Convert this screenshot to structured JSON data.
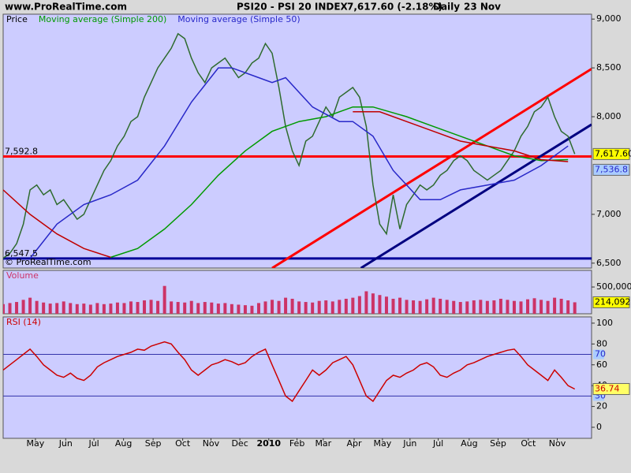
{
  "header": {
    "site": "www.ProRealTime.com",
    "instrument": "PSI20 - PSI 20 INDEX",
    "last": "7,617.60 (-2.18%)",
    "period": "Daily",
    "date": "23 Nov",
    "watermark": "© ProRealTime.com"
  },
  "chart_data": [
    {
      "type": "line",
      "title": "Price",
      "title_color": "#000000",
      "xlim": [
        0,
        87.5
      ],
      "ylim": [
        6450,
        9050
      ],
      "yticks": [
        {
          "value": 6500,
          "label": "6,500"
        },
        {
          "value": 7000,
          "label": "7,000"
        },
        {
          "value": 8000,
          "label": "8,000"
        },
        {
          "value": 8500,
          "label": "8,500"
        },
        {
          "value": 9000,
          "label": "9,000"
        }
      ],
      "series": [
        {
          "color": "#2e6b2e",
          "x": [
            0,
            1,
            2,
            3,
            4,
            5,
            6,
            7,
            8,
            9,
            10,
            11,
            12,
            13,
            14,
            15,
            16,
            17,
            18,
            19,
            20,
            21,
            22,
            23,
            24,
            25,
            26,
            27,
            28,
            29,
            30,
            31,
            32,
            33,
            34,
            35,
            36,
            37,
            38,
            39,
            40,
            41,
            42,
            43,
            44,
            45,
            46,
            47,
            48,
            49,
            50,
            51,
            52,
            53,
            54,
            55,
            56,
            57,
            58,
            59,
            60,
            61,
            62,
            63,
            64,
            65,
            66,
            67,
            68,
            69,
            70,
            71,
            72,
            73,
            74,
            75,
            76,
            77,
            78,
            79,
            80,
            81,
            82,
            83,
            84,
            85
          ],
          "values": [
            6550,
            6600,
            6700,
            6900,
            7250,
            7300,
            7200,
            7250,
            7100,
            7150,
            7050,
            6950,
            7000,
            7150,
            7300,
            7450,
            7550,
            7700,
            7800,
            7950,
            8000,
            8200,
            8350,
            8500,
            8600,
            8700,
            8850,
            8800,
            8600,
            8450,
            8350,
            8500,
            8550,
            8600,
            8500,
            8400,
            8450,
            8550,
            8600,
            8750,
            8650,
            8300,
            7900,
            7650,
            7500,
            7750,
            7800,
            7950,
            8100,
            8000,
            8200,
            8250,
            8300,
            8200,
            7900,
            7300,
            6900,
            6800,
            7200,
            6850,
            7100,
            7200,
            7300,
            7250,
            7300,
            7400,
            7450,
            7550,
            7600,
            7550,
            7450,
            7400,
            7350,
            7400,
            7450,
            7550,
            7650,
            7800,
            7900,
            8050,
            8100,
            8200,
            8000,
            7850,
            7800,
            7617.6
          ]
        },
        {
          "name": "Moving average (Simple 200)",
          "color": "#009a00",
          "x": [
            16,
            20,
            24,
            28,
            32,
            36,
            40,
            44,
            48,
            52,
            55,
            60,
            64,
            68,
            72,
            76,
            80,
            84
          ],
          "values": [
            6560,
            6650,
            6850,
            7100,
            7400,
            7650,
            7850,
            7950,
            8000,
            8100,
            8100,
            8000,
            7900,
            7800,
            7700,
            7600,
            7550,
            7560
          ]
        },
        {
          "name": "Moving average (Simple 50)",
          "color": "#2828c8",
          "x": [
            4,
            8,
            12,
            16,
            20,
            24,
            28,
            32,
            34,
            38,
            40,
            42,
            46,
            50,
            52,
            55,
            58,
            62,
            65,
            68,
            72,
            76,
            80,
            84
          ],
          "values": [
            6550,
            6900,
            7100,
            7200,
            7350,
            7700,
            8150,
            8500,
            8500,
            8400,
            8350,
            8400,
            8100,
            7950,
            7950,
            7800,
            7450,
            7150,
            7150,
            7250,
            7300,
            7350,
            7500,
            7700
          ]
        },
        {
          "color": "#c00000",
          "x": [
            0,
            4,
            8,
            12,
            16,
            20,
            52,
            56,
            60,
            64,
            68,
            72,
            76,
            80,
            84
          ],
          "values": [
            7250,
            7000,
            6800,
            6650,
            6560,
            null,
            8050,
            8050,
            7950,
            7850,
            7750,
            7700,
            7650,
            7560,
            7540
          ]
        }
      ],
      "hlines": [
        {
          "value": 7592.8,
          "label": "7,592.8",
          "color": "#ff0000"
        },
        {
          "value": 6547.5,
          "label": "6,547.5",
          "color": "#000099"
        }
      ],
      "trendlines": [
        {
          "x": [
            40,
            87.5
          ],
          "y": [
            6450,
            8490
          ],
          "color": "#ff0000"
        },
        {
          "x": [
            53.2,
            87.5
          ],
          "y": [
            6450,
            7920
          ],
          "color": "#000080"
        }
      ],
      "boxes": [
        {
          "value": 7617.6,
          "label": "7,617.60",
          "fill": "#ffff00",
          "color": "#000000"
        },
        {
          "value": 7536.8,
          "label": "7,536.8",
          "fill": "#aaccff",
          "color": "#2828c8"
        }
      ]
    },
    {
      "type": "bar",
      "title": "Volume",
      "title_color": "#cc3366",
      "xlim": [
        0,
        87.5
      ],
      "ylim": [
        0,
        810000
      ],
      "yticks": [
        {
          "value": 500000,
          "label": "500,000"
        }
      ],
      "series": [
        {
          "color": "#cc3366",
          "x": [
            0,
            1,
            2,
            3,
            4,
            5,
            6,
            7,
            8,
            9,
            10,
            11,
            12,
            13,
            14,
            15,
            16,
            17,
            18,
            19,
            20,
            21,
            22,
            23,
            24,
            25,
            26,
            27,
            28,
            29,
            30,
            31,
            32,
            33,
            34,
            35,
            36,
            37,
            38,
            39,
            40,
            41,
            42,
            43,
            44,
            45,
            46,
            47,
            48,
            49,
            50,
            51,
            52,
            53,
            54,
            55,
            56,
            57,
            58,
            59,
            60,
            61,
            62,
            63,
            64,
            65,
            66,
            67,
            68,
            69,
            70,
            71,
            72,
            73,
            74,
            75,
            76,
            77,
            78,
            79,
            80,
            81,
            82,
            83,
            84,
            85
          ],
          "values": [
            180000,
            200000,
            220000,
            260000,
            300000,
            240000,
            210000,
            190000,
            200000,
            230000,
            200000,
            180000,
            190000,
            170000,
            200000,
            180000,
            190000,
            210000,
            200000,
            230000,
            220000,
            250000,
            260000,
            240000,
            520000,
            230000,
            220000,
            210000,
            240000,
            200000,
            220000,
            210000,
            190000,
            200000,
            180000,
            170000,
            160000,
            150000,
            200000,
            230000,
            260000,
            240000,
            300000,
            280000,
            230000,
            220000,
            210000,
            240000,
            250000,
            230000,
            260000,
            280000,
            300000,
            330000,
            420000,
            380000,
            350000,
            320000,
            280000,
            300000,
            260000,
            250000,
            240000,
            270000,
            300000,
            280000,
            260000,
            240000,
            220000,
            230000,
            250000,
            260000,
            240000,
            250000,
            280000,
            260000,
            240000,
            230000,
            270000,
            290000,
            260000,
            240000,
            300000,
            280000,
            250000,
            214092
          ]
        }
      ],
      "boxes": [
        {
          "value": 214092,
          "label": "214,092",
          "fill": "#ffff00",
          "color": "#000000"
        }
      ]
    },
    {
      "type": "line",
      "title": "RSI (14)",
      "title_color": "#cc0000",
      "xlim": [
        0,
        87.5
      ],
      "ylim": [
        -10.6,
        106
      ],
      "yticks": [
        0,
        20,
        40,
        60,
        80,
        100
      ],
      "levels": [
        {
          "value": 70,
          "label": "70"
        },
        {
          "value": 30,
          "label": "30"
        }
      ],
      "xticks": [
        {
          "value": 4.8,
          "label": "May"
        },
        {
          "value": 9.3,
          "label": "Jun"
        },
        {
          "value": 13.5,
          "label": "Jul"
        },
        {
          "value": 17.9,
          "label": "Aug"
        },
        {
          "value": 22.3,
          "label": "Sep"
        },
        {
          "value": 26.7,
          "label": "Oct"
        },
        {
          "value": 30.9,
          "label": "Nov"
        },
        {
          "value": 35.2,
          "label": "Dec"
        },
        {
          "value": 39.5,
          "label": "2010",
          "bold": true
        },
        {
          "value": 43.7,
          "label": "Feb"
        },
        {
          "value": 47.6,
          "label": "Mar"
        },
        {
          "value": 52.2,
          "label": "Apr"
        },
        {
          "value": 56.4,
          "label": "May"
        },
        {
          "value": 60.5,
          "label": "Jun"
        },
        {
          "value": 64.7,
          "label": "Jul"
        },
        {
          "value": 69.3,
          "label": "Aug"
        },
        {
          "value": 73.6,
          "label": "Sep"
        },
        {
          "value": 78.1,
          "label": "Oct"
        },
        {
          "value": 82.4,
          "label": "Nov"
        }
      ],
      "series": [
        {
          "color": "#cc0000",
          "x": [
            0,
            1,
            2,
            3,
            4,
            5,
            6,
            7,
            8,
            9,
            10,
            11,
            12,
            13,
            14,
            15,
            16,
            17,
            18,
            19,
            20,
            21,
            22,
            23,
            24,
            25,
            26,
            27,
            28,
            29,
            30,
            31,
            32,
            33,
            34,
            35,
            36,
            37,
            38,
            39,
            40,
            41,
            42,
            43,
            44,
            45,
            46,
            47,
            48,
            49,
            50,
            51,
            52,
            53,
            54,
            55,
            56,
            57,
            58,
            59,
            60,
            61,
            62,
            63,
            64,
            65,
            66,
            67,
            68,
            69,
            70,
            71,
            72,
            73,
            74,
            75,
            76,
            77,
            78,
            79,
            80,
            81,
            82,
            83,
            84,
            85
          ],
          "values": [
            55,
            60,
            65,
            70,
            75,
            68,
            60,
            55,
            50,
            48,
            52,
            47,
            45,
            50,
            58,
            62,
            65,
            68,
            70,
            72,
            75,
            74,
            78,
            80,
            82,
            80,
            72,
            65,
            55,
            50,
            55,
            60,
            62,
            65,
            63,
            60,
            62,
            68,
            72,
            75,
            60,
            45,
            30,
            25,
            35,
            45,
            55,
            50,
            55,
            62,
            65,
            68,
            60,
            45,
            30,
            25,
            35,
            45,
            50,
            48,
            52,
            55,
            60,
            62,
            58,
            50,
            48,
            52,
            55,
            60,
            62,
            65,
            68,
            70,
            72,
            74,
            75,
            68,
            60,
            55,
            50,
            45,
            55,
            48,
            40,
            36.74
          ]
        }
      ],
      "boxes": [
        {
          "value": 36.74,
          "label": "36.74",
          "fill": "#ffff66",
          "color": "#cc0000"
        }
      ]
    }
  ]
}
